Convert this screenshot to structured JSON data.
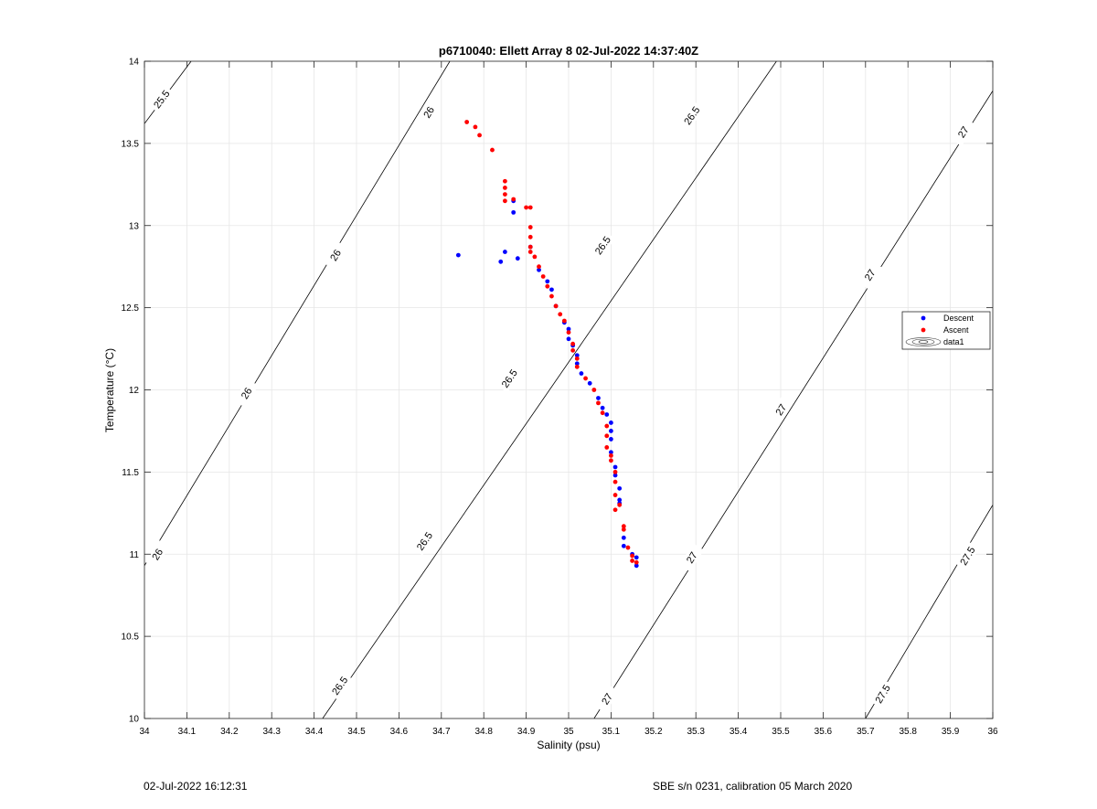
{
  "chart_data": {
    "type": "scatter",
    "title": "p6710040: Ellett Array 8 02-Jul-2022 14:37:40Z",
    "xlabel": "Salinity (psu)",
    "ylabel": "Temperature (°C)",
    "xlim": [
      34,
      36
    ],
    "ylim": [
      10,
      14
    ],
    "x_ticks": [
      "34",
      "34.1",
      "34.2",
      "34.3",
      "34.4",
      "34.5",
      "34.6",
      "34.7",
      "34.8",
      "34.9",
      "35",
      "35.1",
      "35.2",
      "35.3",
      "35.4",
      "35.5",
      "35.6",
      "35.7",
      "35.8",
      "35.9",
      "36"
    ],
    "y_ticks": [
      "10",
      "10.5",
      "11",
      "11.5",
      "12",
      "12.5",
      "13",
      "13.5",
      "14"
    ],
    "grid": true,
    "legend_position": "right",
    "legend": [
      "Descent",
      "Ascent",
      "data1"
    ],
    "colors": {
      "descent": "#0000ff",
      "ascent": "#ff0000",
      "contour": "#000000",
      "grid": "#e6e6e6"
    },
    "density_contours": [
      {
        "level": 25.5,
        "label": "25.5",
        "points": [
          [
            34.0,
            13.62
          ],
          [
            34.11,
            14.0
          ]
        ],
        "labels_at": [
          [
            34.04,
            13.77
          ]
        ]
      },
      {
        "level": 26,
        "label": "26",
        "points": [
          [
            34.0,
            10.93
          ],
          [
            34.72,
            14.0
          ]
        ],
        "labels_at": [
          [
            34.03,
            11.0
          ],
          [
            34.24,
            11.98
          ],
          [
            34.45,
            12.82
          ],
          [
            34.67,
            13.69
          ]
        ]
      },
      {
        "level": 26.5,
        "label": "26.5",
        "points": [
          [
            34.42,
            10.0
          ],
          [
            35.49,
            14.0
          ]
        ],
        "labels_at": [
          [
            34.46,
            10.2
          ],
          [
            34.66,
            11.08
          ],
          [
            34.86,
            12.07
          ],
          [
            35.08,
            12.88
          ],
          [
            35.29,
            13.67
          ]
        ]
      },
      {
        "level": 27,
        "label": "27",
        "points": [
          [
            35.06,
            10.0
          ],
          [
            36.0,
            13.82
          ]
        ],
        "labels_at": [
          [
            35.09,
            10.12
          ],
          [
            35.29,
            10.98
          ],
          [
            35.5,
            11.88
          ],
          [
            35.71,
            12.7
          ],
          [
            35.93,
            13.57
          ]
        ]
      },
      {
        "level": 27.5,
        "label": "27.5",
        "points": [
          [
            35.7,
            10.0
          ],
          [
            36.0,
            11.3
          ]
        ],
        "labels_at": [
          [
            35.74,
            10.15
          ],
          [
            35.94,
            10.99
          ]
        ]
      }
    ],
    "series": [
      {
        "name": "Descent",
        "marker": "dot",
        "points": [
          [
            34.74,
            12.82
          ],
          [
            34.84,
            12.78
          ],
          [
            34.85,
            12.84
          ],
          [
            34.88,
            12.8
          ],
          [
            34.87,
            13.08
          ],
          [
            34.87,
            13.15
          ],
          [
            34.91,
            12.87
          ],
          [
            34.93,
            12.73
          ],
          [
            34.95,
            12.66
          ],
          [
            34.96,
            12.61
          ],
          [
            34.97,
            12.51
          ],
          [
            34.99,
            12.41
          ],
          [
            35.0,
            12.37
          ],
          [
            35.0,
            12.31
          ],
          [
            35.01,
            12.27
          ],
          [
            35.02,
            12.21
          ],
          [
            35.02,
            12.16
          ],
          [
            35.03,
            12.1
          ],
          [
            35.05,
            12.04
          ],
          [
            35.07,
            11.95
          ],
          [
            35.08,
            11.89
          ],
          [
            35.09,
            11.85
          ],
          [
            35.1,
            11.8
          ],
          [
            35.1,
            11.75
          ],
          [
            35.1,
            11.7
          ],
          [
            35.1,
            11.62
          ],
          [
            35.11,
            11.53
          ],
          [
            35.11,
            11.48
          ],
          [
            35.12,
            11.4
          ],
          [
            35.12,
            11.33
          ],
          [
            35.12,
            11.31
          ],
          [
            35.13,
            11.1
          ],
          [
            35.13,
            11.05
          ],
          [
            35.15,
            11.0
          ],
          [
            35.16,
            10.98
          ],
          [
            35.16,
            10.93
          ]
        ]
      },
      {
        "name": "Ascent",
        "marker": "dot",
        "points": [
          [
            34.76,
            13.63
          ],
          [
            34.78,
            13.6
          ],
          [
            34.79,
            13.55
          ],
          [
            34.82,
            13.46
          ],
          [
            34.85,
            13.27
          ],
          [
            34.85,
            13.23
          ],
          [
            34.85,
            13.19
          ],
          [
            34.85,
            13.15
          ],
          [
            34.87,
            13.16
          ],
          [
            34.9,
            13.11
          ],
          [
            34.91,
            13.11
          ],
          [
            34.91,
            12.99
          ],
          [
            34.91,
            12.93
          ],
          [
            34.91,
            12.87
          ],
          [
            34.91,
            12.84
          ],
          [
            34.92,
            12.81
          ],
          [
            34.93,
            12.75
          ],
          [
            34.94,
            12.69
          ],
          [
            34.95,
            12.63
          ],
          [
            34.96,
            12.57
          ],
          [
            34.97,
            12.51
          ],
          [
            34.98,
            12.46
          ],
          [
            34.99,
            12.42
          ],
          [
            35.0,
            12.35
          ],
          [
            35.01,
            12.28
          ],
          [
            35.01,
            12.24
          ],
          [
            35.02,
            12.19
          ],
          [
            35.02,
            12.14
          ],
          [
            35.04,
            12.07
          ],
          [
            35.06,
            12.0
          ],
          [
            35.07,
            11.92
          ],
          [
            35.08,
            11.86
          ],
          [
            35.09,
            11.78
          ],
          [
            35.09,
            11.72
          ],
          [
            35.09,
            11.65
          ],
          [
            35.1,
            11.6
          ],
          [
            35.1,
            11.57
          ],
          [
            35.11,
            11.5
          ],
          [
            35.11,
            11.44
          ],
          [
            35.11,
            11.36
          ],
          [
            35.12,
            11.3
          ],
          [
            35.11,
            11.27
          ],
          [
            35.13,
            11.15
          ],
          [
            35.13,
            11.17
          ],
          [
            35.14,
            11.04
          ],
          [
            35.15,
            10.99
          ],
          [
            35.15,
            10.96
          ],
          [
            35.16,
            10.95
          ]
        ]
      },
      {
        "name": "data1",
        "marker": "contour-line"
      }
    ]
  },
  "footer": {
    "left": "02-Jul-2022 16:12:31",
    "right": "SBE s/n 0231, calibration 05 March 2020"
  }
}
